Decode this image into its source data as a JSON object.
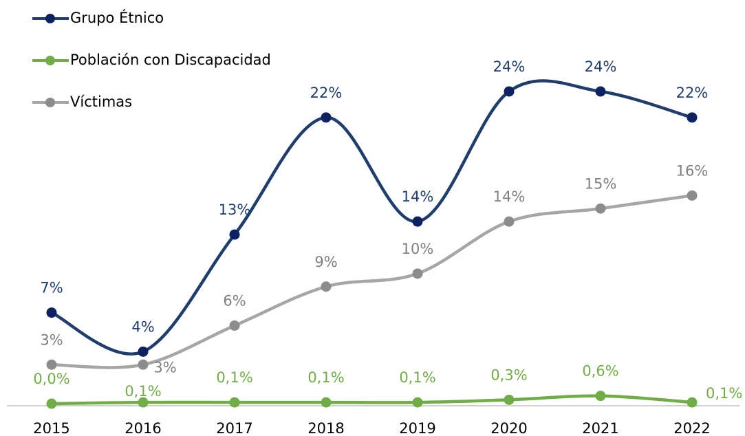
{
  "chart_data": {
    "type": "line",
    "categories": [
      "2015",
      "2016",
      "2017",
      "2018",
      "2019",
      "2020",
      "2021",
      "2022"
    ],
    "series": [
      {
        "name": "Grupo Étnico",
        "color": "#1f3e6e",
        "marker_color": "#0d2260",
        "values": [
          7,
          4,
          13,
          22,
          14,
          24,
          24,
          22
        ],
        "value_labels": [
          "7%",
          "4%",
          "13%",
          "22%",
          "14%",
          "24%",
          "24%",
          "22%"
        ]
      },
      {
        "name": "Población con Discapacidad",
        "color": "#70ad47",
        "marker_color": "#70ad47",
        "values": [
          0.0,
          0.1,
          0.1,
          0.1,
          0.1,
          0.3,
          0.6,
          0.1
        ],
        "value_labels": [
          "0,0%",
          "0,1%",
          "0,1%",
          "0,1%",
          "0,1%",
          "0,3%",
          "0,6%",
          "0,1%"
        ]
      },
      {
        "name": "Víctimas",
        "color": "#a6a6a6",
        "marker_color": "#8c8c8c",
        "values": [
          3,
          3,
          6,
          9,
          10,
          14,
          15,
          16
        ],
        "value_labels": [
          "3%",
          "3%",
          "6%",
          "9%",
          "10%",
          "14%",
          "15%",
          "16%"
        ]
      }
    ]
  }
}
